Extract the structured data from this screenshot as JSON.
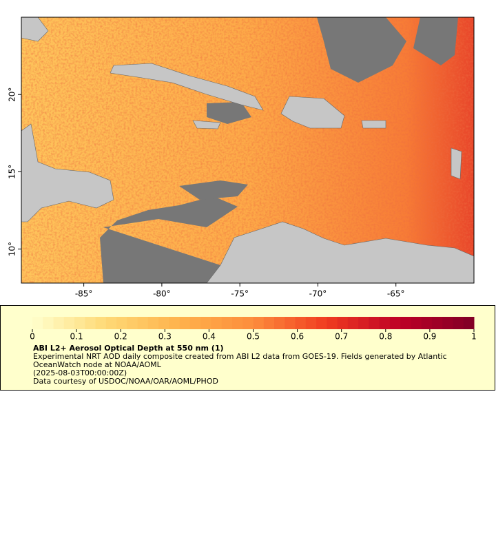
{
  "map": {
    "xlim": [
      -89,
      -60
    ],
    "ylim": [
      7.8,
      25
    ],
    "xticks": [
      {
        "value": -85,
        "label": "-85°"
      },
      {
        "value": -80,
        "label": "-80°"
      },
      {
        "value": -75,
        "label": "-75°"
      },
      {
        "value": -70,
        "label": "-70°"
      },
      {
        "value": -65,
        "label": "-65°"
      }
    ],
    "yticks": [
      {
        "value": 10,
        "label": "10°"
      },
      {
        "value": 15,
        "label": "15°"
      },
      {
        "value": 20,
        "label": "20°"
      }
    ]
  },
  "colorbar": {
    "range": [
      0,
      1
    ],
    "ticks": [
      0,
      0.1,
      0.2,
      0.3,
      0.4,
      0.5,
      0.6,
      0.7,
      0.8,
      0.9,
      1
    ],
    "colors": [
      "#ffffcc",
      "#fed976",
      "#feb24c",
      "#fd8d3c",
      "#f03b20",
      "#bd0026",
      "#800026"
    ]
  },
  "legend": {
    "title": "ABI L2+ Aerosol Optical Depth at 550 nm (1)",
    "description": "Experimental NRT AOD daily composite created from ABI L2 data from GOES-19. Fields generated by Atlantic OceanWatch node at NOAA/AOML",
    "time": "(2025-08-03T00:00:00Z)",
    "credit": "Data courtesy of USDOC/NOAA/OAR/AOML/PHOD"
  }
}
